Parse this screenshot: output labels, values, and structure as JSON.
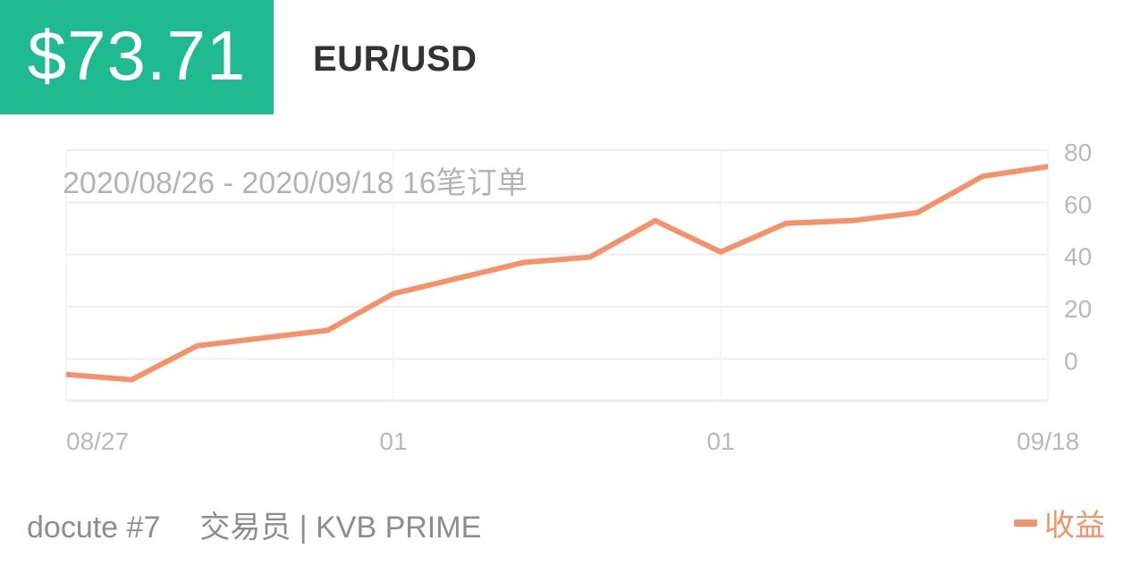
{
  "header": {
    "price": "$73.71",
    "symbol": "EUR/USD"
  },
  "footer": {
    "account": "docute #7",
    "role": "交易员 | KVB PRIME",
    "legend_label": "收益"
  },
  "colors": {
    "accent": "#1fba92",
    "line": "#f5926a",
    "grid": "#eeeeee",
    "axis_text": "#b9b9b9"
  },
  "chart_data": {
    "type": "line",
    "annotation": "2020/08/26 - 2020/09/18  16笔订单",
    "x_tick_labels": [
      "08/27",
      "01",
      "01",
      "09/18"
    ],
    "y_tick_labels": [
      "80",
      "60",
      "40",
      "20",
      "0"
    ],
    "y_ticks": [
      80,
      60,
      40,
      20,
      0
    ],
    "ylim": [
      -16,
      80
    ],
    "xlim": [
      0,
      15
    ],
    "grid": true,
    "legend_position": "bottom-right",
    "series": [
      {
        "name": "收益",
        "x": [
          0,
          1,
          2,
          3,
          4,
          5,
          6,
          7,
          8,
          9,
          10,
          11,
          12,
          13,
          14,
          15
        ],
        "values": [
          -6,
          -8,
          5,
          8,
          11,
          25,
          31,
          37,
          39,
          53,
          41,
          52,
          53,
          56,
          70,
          73.71
        ]
      }
    ]
  }
}
